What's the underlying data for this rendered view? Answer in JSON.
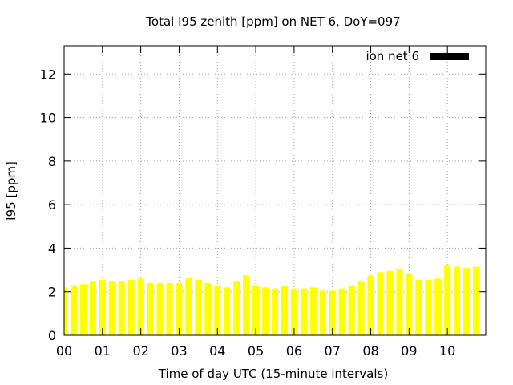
{
  "chart_data": {
    "type": "bar",
    "title": "Total I95 zenith [ppm] on NET 6, DoY=097",
    "xlabel": "Time of day UTC (15-minute intervals)",
    "ylabel": "I95 [ppm]",
    "xlim": [
      0,
      11
    ],
    "ylim": [
      0,
      13.3
    ],
    "xticks": [
      "00",
      "01",
      "02",
      "03",
      "04",
      "05",
      "06",
      "07",
      "08",
      "09",
      "10"
    ],
    "yticks": [
      "0",
      "2",
      "4",
      "6",
      "8",
      "10",
      "12"
    ],
    "grid": true,
    "legend_position": "top-right",
    "series": [
      {
        "name": "ion net 6",
        "color": "#ffff00",
        "legend_color": "#000000",
        "x": [
          0.0,
          0.25,
          0.5,
          0.75,
          1.0,
          1.25,
          1.5,
          1.75,
          2.0,
          2.25,
          2.5,
          2.75,
          3.0,
          3.25,
          3.5,
          3.75,
          4.0,
          4.25,
          4.5,
          4.75,
          5.0,
          5.25,
          5.5,
          5.75,
          6.0,
          6.25,
          6.5,
          6.75,
          7.0,
          7.25,
          7.5,
          7.75,
          8.0,
          8.25,
          8.5,
          8.75,
          9.0,
          9.25,
          9.5,
          9.75,
          10.0,
          10.25,
          10.5,
          10.75
        ],
        "values": [
          2.2,
          2.3,
          2.35,
          2.5,
          2.55,
          2.5,
          2.5,
          2.55,
          2.6,
          2.4,
          2.4,
          2.4,
          2.4,
          2.65,
          2.55,
          2.4,
          2.25,
          2.2,
          2.5,
          2.75,
          2.3,
          2.2,
          2.15,
          2.25,
          2.15,
          2.15,
          2.2,
          2.05,
          2.05,
          2.15,
          2.3,
          2.5,
          2.75,
          2.9,
          2.95,
          3.05,
          2.85,
          2.55,
          2.55,
          2.6,
          3.25,
          3.15,
          3.1,
          3.15
        ]
      }
    ]
  }
}
